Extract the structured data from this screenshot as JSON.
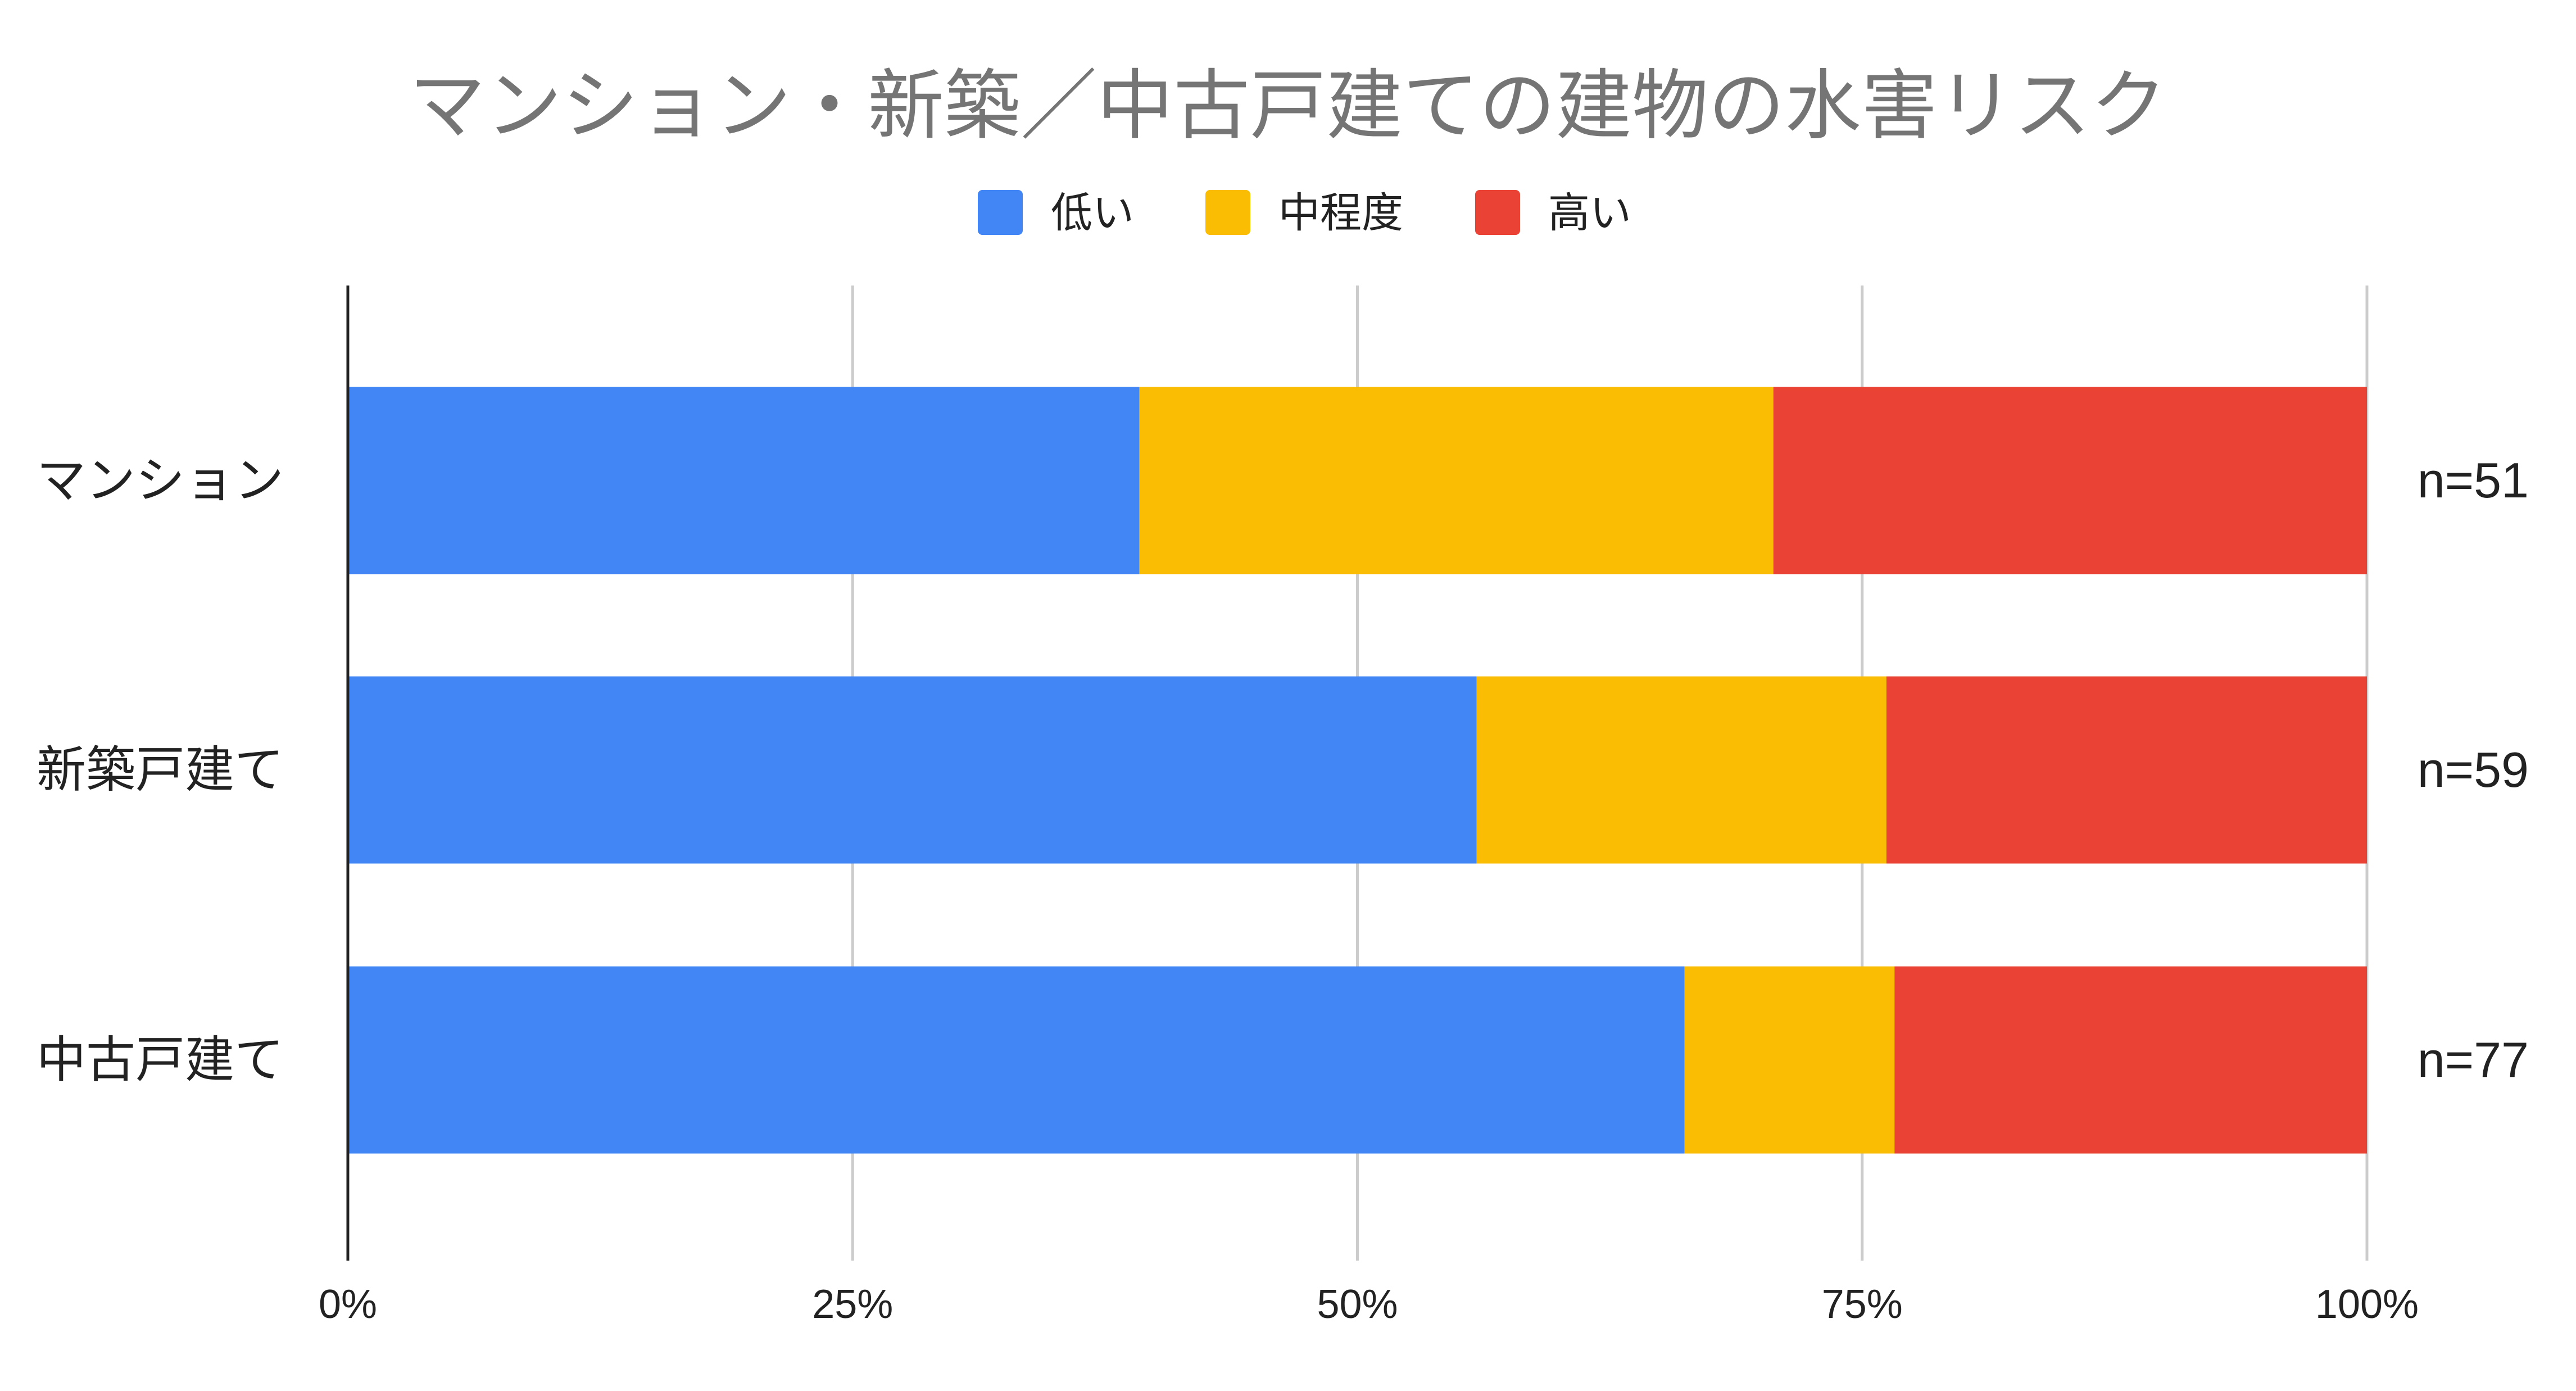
{
  "chart_data": {
    "type": "bar",
    "orientation": "horizontal",
    "stacked": true,
    "title": "マンション・新築／中古戸建ての建物の水害リスク",
    "legend_position": "top",
    "categories": [
      "マンション",
      "新築戸建て",
      "中古戸建て"
    ],
    "annotations": [
      "n=51",
      "n=59",
      "n=77"
    ],
    "series": [
      {
        "name": "低い",
        "color": "#4285F4",
        "values": [
          39.2,
          55.9,
          66.2
        ]
      },
      {
        "name": "中程度",
        "color": "#FBBC04",
        "values": [
          31.4,
          20.3,
          10.4
        ]
      },
      {
        "name": "高い",
        "color": "#EA4335",
        "values": [
          29.4,
          23.8,
          23.4
        ]
      }
    ],
    "xlim": [
      0,
      100
    ],
    "ticks": [
      "0%",
      "25%",
      "50%",
      "75%",
      "100%"
    ],
    "tick_values": [
      0,
      25,
      50,
      75,
      100
    ],
    "grid": true
  }
}
